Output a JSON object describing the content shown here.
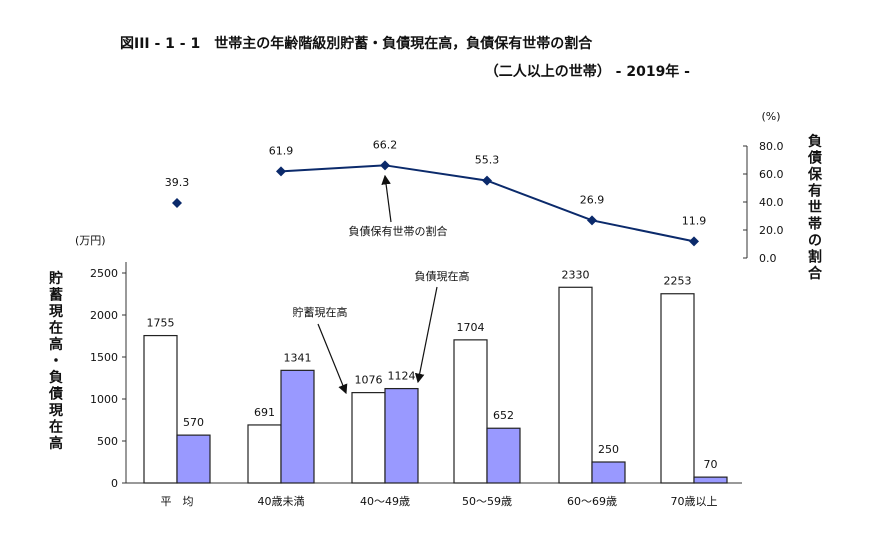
{
  "chart_data": {
    "type": "bar+line",
    "title": "図III - 1 - 1　世帯主の年齢階級別貯蓄・負債現在高，負債保有世帯の割合",
    "subtitle": "（二人以上の世帯） - 2019年 -",
    "categories": [
      "平　均",
      "40歳未満",
      "40～49歳",
      "50～59歳",
      "60～69歳",
      "70歳以上"
    ],
    "left_axis": {
      "unit": "(万円)",
      "label": "貯蓄現在高・負債現在高",
      "ylim": [
        0,
        2500
      ],
      "ticks": [
        0,
        500,
        1000,
        1500,
        2000,
        2500
      ]
    },
    "right_axis": {
      "unit": "(%)",
      "label": "負債保有世帯の割合",
      "ylim": [
        0,
        80
      ],
      "ticks": [
        "0.0",
        "20.0",
        "40.0",
        "60.0",
        "80.0"
      ]
    },
    "series": [
      {
        "name": "貯蓄現在高",
        "type": "bar",
        "color": "#ffffff",
        "values": [
          1755,
          691,
          1076,
          1704,
          2330,
          2253
        ]
      },
      {
        "name": "負債現在高",
        "type": "bar",
        "color": "#9999ff",
        "values": [
          570,
          1341,
          1124,
          652,
          250,
          70
        ]
      },
      {
        "name": "負債保有世帯の割合",
        "type": "line",
        "color": "#0b2a6b",
        "values": [
          39.3,
          61.9,
          66.2,
          55.3,
          26.9,
          11.9
        ],
        "labels": [
          "39.3",
          "61.9",
          "66.2",
          "55.3",
          "26.9",
          "11.9"
        ]
      }
    ],
    "grid": false
  }
}
